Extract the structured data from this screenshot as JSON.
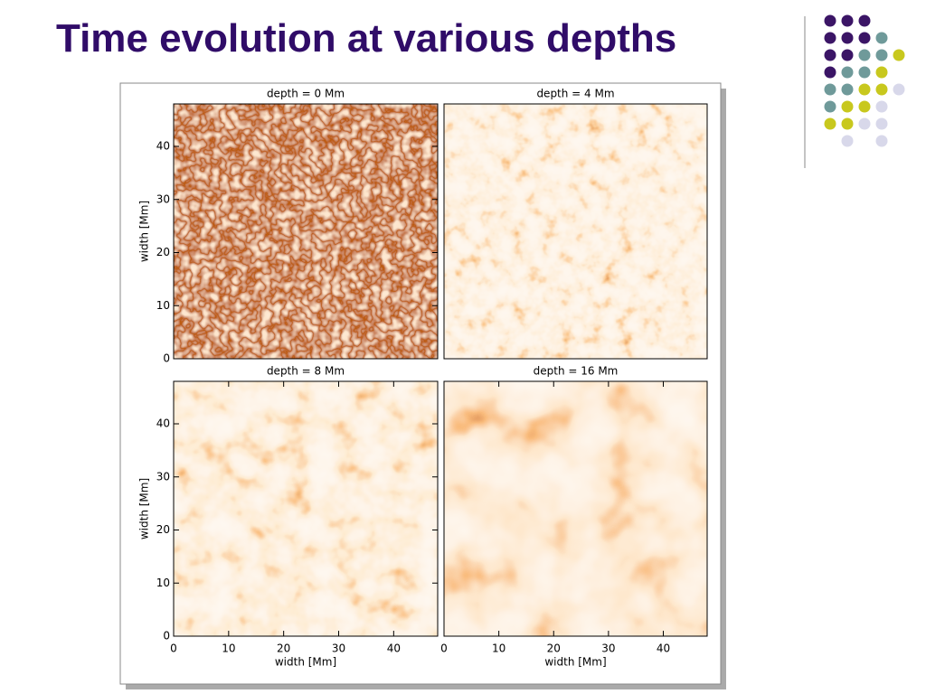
{
  "slide": {
    "title": "Time evolution at various depths"
  },
  "chart_data": [
    {
      "type": "heatmap",
      "title": "depth = 0 Mm",
      "ylabel": "width [Mm]",
      "xlim": [
        0,
        48
      ],
      "ylim": [
        0,
        48
      ],
      "yticks": [
        0,
        10,
        20,
        30,
        40
      ]
    },
    {
      "type": "heatmap",
      "title": "depth = 4 Mm",
      "xlim": [
        0,
        48
      ],
      "ylim": [
        0,
        48
      ]
    },
    {
      "type": "heatmap",
      "title": "depth = 8 Mm",
      "xlabel": "width [Mm]",
      "ylabel": "width [Mm]",
      "xlim": [
        0,
        48
      ],
      "ylim": [
        0,
        48
      ],
      "xticks": [
        0,
        10,
        20,
        30,
        40
      ],
      "yticks": [
        0,
        10,
        20,
        30,
        40
      ]
    },
    {
      "type": "heatmap",
      "title": "depth = 16 Mm",
      "xlabel": "width [Mm]",
      "xlim": [
        0,
        48
      ],
      "ylim": [
        0,
        48
      ],
      "xticks": [
        0,
        10,
        20,
        30,
        40
      ]
    }
  ]
}
